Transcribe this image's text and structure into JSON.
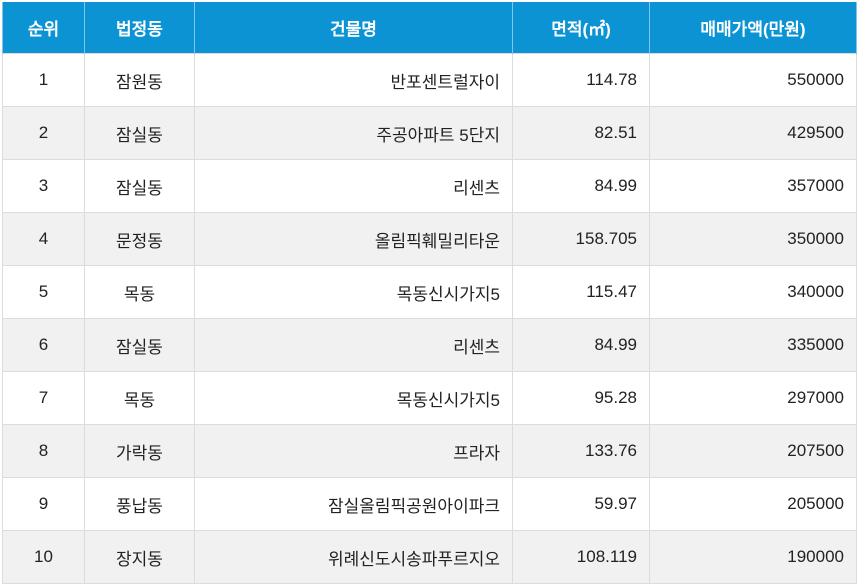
{
  "table": {
    "headers": [
      "순위",
      "법정동",
      "건물명",
      "면적(㎡)",
      "매매가액(만원)"
    ],
    "rows": [
      {
        "rank": "1",
        "dong": "잠원동",
        "building": "반포센트럴자이",
        "area": "114.78",
        "price": "550000"
      },
      {
        "rank": "2",
        "dong": "잠실동",
        "building": "주공아파트 5단지",
        "area": "82.51",
        "price": "429500"
      },
      {
        "rank": "3",
        "dong": "잠실동",
        "building": "리센츠",
        "area": "84.99",
        "price": "357000"
      },
      {
        "rank": "4",
        "dong": "문정동",
        "building": "올림픽훼밀리타운",
        "area": "158.705",
        "price": "350000"
      },
      {
        "rank": "5",
        "dong": "목동",
        "building": "목동신시가지5",
        "area": "115.47",
        "price": "340000"
      },
      {
        "rank": "6",
        "dong": "잠실동",
        "building": "리센츠",
        "area": "84.99",
        "price": "335000"
      },
      {
        "rank": "7",
        "dong": "목동",
        "building": "목동신시가지5",
        "area": "95.28",
        "price": "297000"
      },
      {
        "rank": "8",
        "dong": "가락동",
        "building": "프라자",
        "area": "133.76",
        "price": "207500"
      },
      {
        "rank": "9",
        "dong": "풍납동",
        "building": "잠실올림픽공원아이파크",
        "area": "59.97",
        "price": "205000"
      },
      {
        "rank": "10",
        "dong": "장지동",
        "building": "위례신도시송파푸르지오",
        "area": "108.119",
        "price": "190000"
      }
    ]
  },
  "colors": {
    "header_bg": "#0b93d3",
    "header_text": "#ffffff",
    "row_alt_bg": "#f1f1f1",
    "border": "#dcdcdc"
  }
}
